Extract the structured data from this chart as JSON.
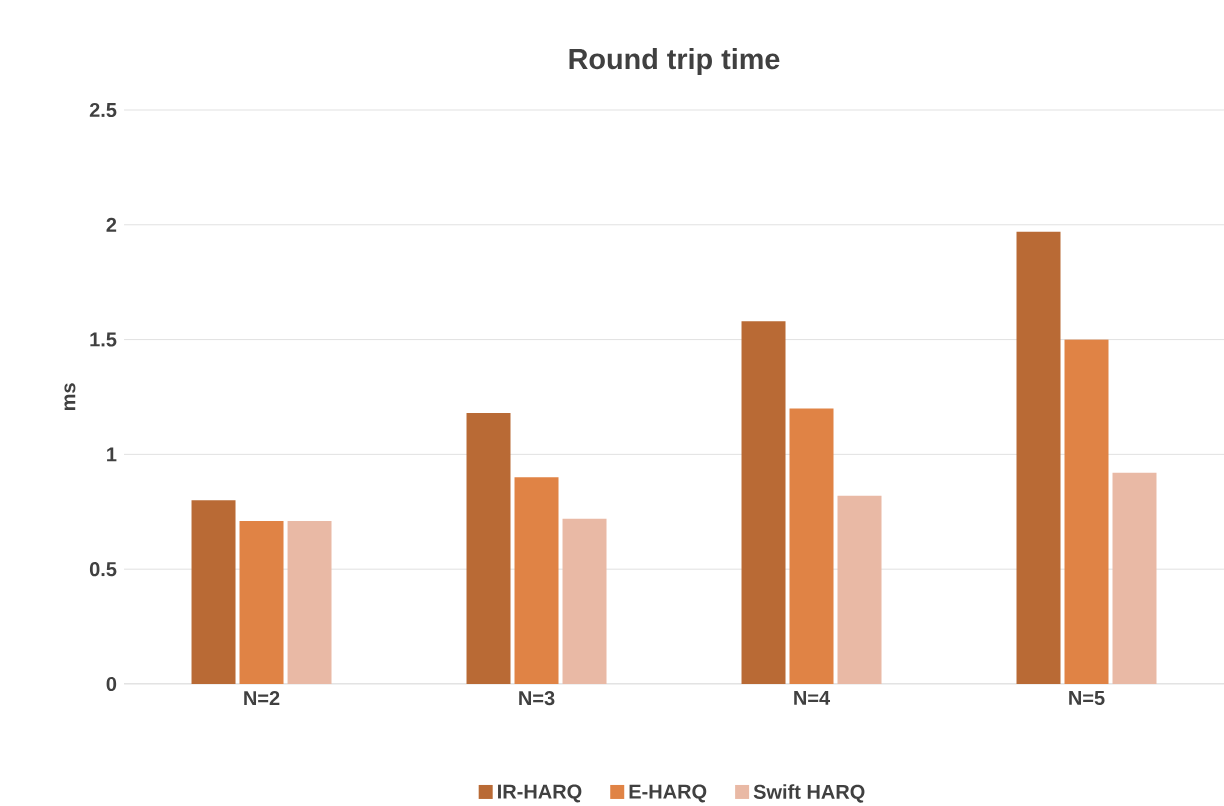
{
  "chart_data": {
    "type": "bar",
    "title": "Round trip time",
    "ylabel": "ms",
    "categories": [
      "N=2",
      "N=3",
      "N=4",
      "N=5"
    ],
    "series": [
      {
        "name": "IR-HARQ",
        "color": "#b96a35",
        "values": [
          0.8,
          1.18,
          1.58,
          1.97
        ]
      },
      {
        "name": "E-HARQ",
        "color": "#e08345",
        "values": [
          0.71,
          0.9,
          1.2,
          1.5
        ]
      },
      {
        "name": "Swift HARQ",
        "color": "#e9b9a5",
        "values": [
          0.71,
          0.72,
          0.82,
          0.92
        ]
      }
    ],
    "ylim": [
      0,
      2.5
    ],
    "yticks": [
      0,
      0.5,
      1,
      1.5,
      2,
      2.5
    ],
    "grid": "y",
    "legend": "bottom"
  }
}
